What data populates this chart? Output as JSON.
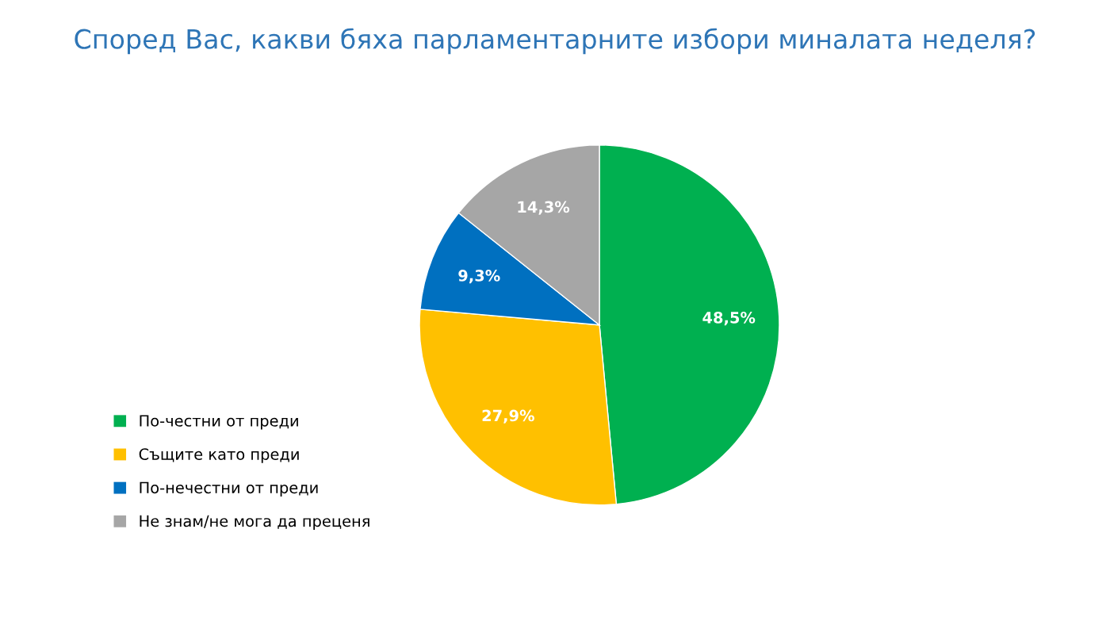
{
  "chart_data": {
    "type": "pie",
    "title": "Според Вас, какви бяха парламентарните избори миналата неделя?",
    "categories": [
      "По-честни от преди",
      "Същите като преди",
      "По-нечестни от преди",
      "Не знам/не мога да преценя"
    ],
    "values": [
      48.5,
      27.9,
      9.3,
      14.3
    ],
    "colors": [
      "#00b050",
      "#ffc000",
      "#0070c0",
      "#a6a6a6"
    ],
    "value_labels": [
      "48,5%",
      "27,9%",
      "9,3%",
      "14,3%"
    ],
    "legend": "bottom left"
  }
}
